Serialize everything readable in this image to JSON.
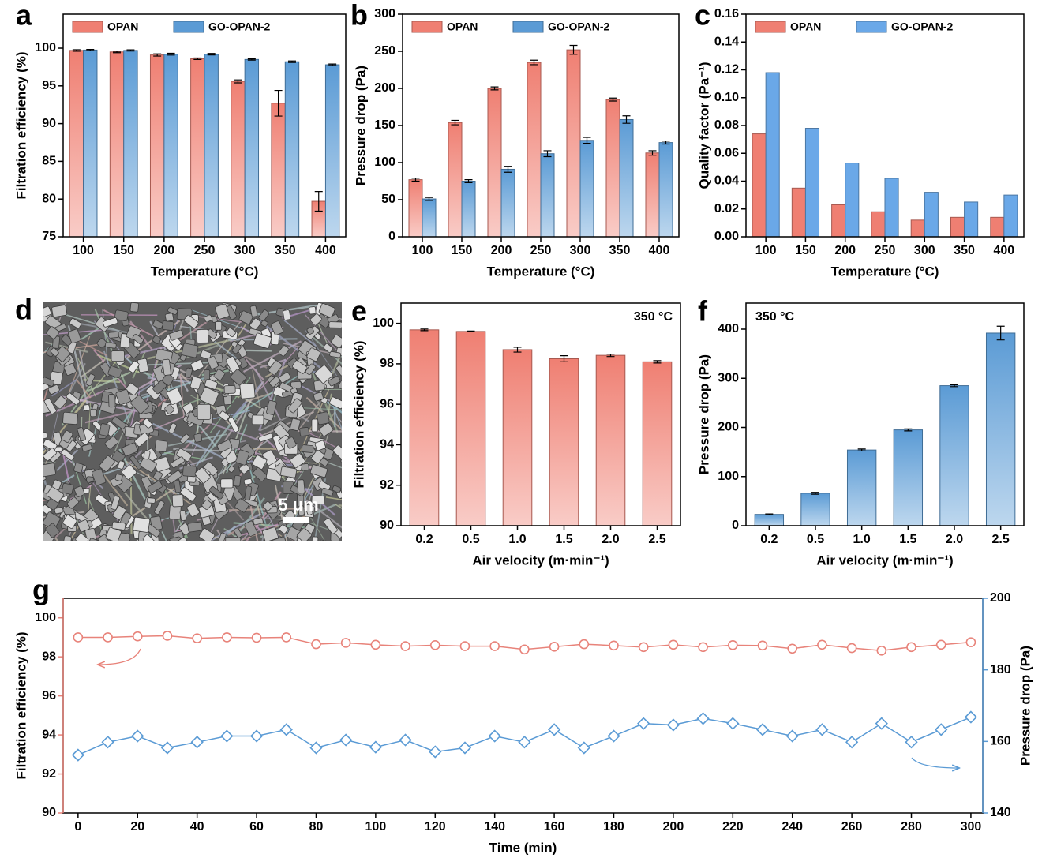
{
  "chart_data": [
    {
      "type": "bar",
      "label": "a",
      "ylabel": "Filtration efficiency (%)",
      "xlabel": "Temperature (°C)",
      "categories": [
        "100",
        "150",
        "200",
        "250",
        "300",
        "350",
        "400"
      ],
      "series": [
        {
          "name": "OPAN",
          "color": "#ef7f72",
          "values": [
            99.7,
            99.5,
            99.1,
            98.6,
            95.6,
            92.7,
            79.7
          ],
          "errors": [
            0.1,
            0.1,
            0.15,
            0.1,
            0.2,
            1.7,
            1.3
          ]
        },
        {
          "name": "GO-OPAN-2",
          "color": "#5b9bd5",
          "values": [
            99.75,
            99.7,
            99.2,
            99.2,
            98.5,
            98.2,
            97.8
          ],
          "errors": [
            0.08,
            0.08,
            0.12,
            0.1,
            0.08,
            0.1,
            0.1
          ]
        }
      ],
      "ylim": [
        75,
        104.5
      ],
      "yticks": [
        75,
        80,
        85,
        90,
        95,
        100
      ],
      "gradient": true
    },
    {
      "type": "bar",
      "label": "b",
      "ylabel": "Pressure drop (Pa)",
      "xlabel": "Temperature (°C)",
      "categories": [
        "100",
        "150",
        "200",
        "250",
        "300",
        "350",
        "400"
      ],
      "series": [
        {
          "name": "OPAN",
          "color": "#ef7f72",
          "values": [
            77,
            154,
            200,
            235,
            252,
            185,
            113
          ],
          "errors": [
            2,
            3,
            2,
            3,
            6,
            2,
            3
          ]
        },
        {
          "name": "GO-OPAN-2",
          "color": "#5b9bd5",
          "values": [
            51,
            75,
            91,
            112,
            130,
            158,
            127
          ],
          "errors": [
            2,
            2,
            4,
            4,
            4,
            5,
            2
          ]
        }
      ],
      "ylim": [
        0,
        300
      ],
      "yticks": [
        0,
        50,
        100,
        150,
        200,
        250,
        300
      ],
      "gradient": true
    },
    {
      "type": "bar",
      "label": "c",
      "ylabel": "Quality factor (Pa⁻¹)",
      "xlabel": "Temperature (°C)",
      "categories": [
        "100",
        "150",
        "200",
        "250",
        "300",
        "350",
        "400"
      ],
      "series": [
        {
          "name": "OPAN",
          "color": "#ef7f72",
          "values": [
            0.074,
            0.035,
            0.023,
            0.018,
            0.012,
            0.014,
            0.014
          ]
        },
        {
          "name": "GO-OPAN-2",
          "color": "#6aa8e8",
          "values": [
            0.118,
            0.078,
            0.053,
            0.042,
            0.032,
            0.025,
            0.03
          ]
        }
      ],
      "ylim": [
        0,
        0.16
      ],
      "yticks": [
        {
          "value": 0,
          "label": "0.00"
        },
        {
          "value": 0.02,
          "label": "0.02"
        },
        {
          "value": 0.04,
          "label": "0.04"
        },
        {
          "value": 0.06,
          "label": "0.06"
        },
        {
          "value": 0.08,
          "label": "0.08"
        },
        {
          "value": 0.1,
          "label": "0.10"
        },
        {
          "value": 0.12,
          "label": "0.12"
        },
        {
          "value": 0.14,
          "label": "0.14"
        },
        {
          "value": 0.16,
          "label": "0.16"
        }
      ],
      "gradient": false
    },
    {
      "type": "bar",
      "label": "e",
      "ylabel": "Filtration efficiency (%)",
      "xlabel": "Air velocity  (m·min⁻¹)",
      "annotation": "350 °C",
      "annotation_position": "upper right",
      "categories": [
        "0.2",
        "0.5",
        "1.0",
        "1.5",
        "2.0",
        "2.5"
      ],
      "series": [
        {
          "color": "#ef7f72",
          "values": [
            99.68,
            99.6,
            98.7,
            98.25,
            98.42,
            98.1
          ],
          "errors": [
            0.04,
            0.02,
            0.12,
            0.15,
            0.06,
            0.06
          ]
        }
      ],
      "ylim": [
        90,
        101
      ],
      "yticks": [
        90,
        92,
        94,
        96,
        98,
        100
      ],
      "gradient": true
    },
    {
      "type": "bar",
      "label": "f",
      "ylabel": "Pressure drop (Pa)",
      "xlabel": "Air velocity  (m·min⁻¹)",
      "annotation": "350 °C",
      "annotation_position": "upper left",
      "categories": [
        "0.2",
        "0.5",
        "1.0",
        "1.5",
        "2.0",
        "2.5"
      ],
      "series": [
        {
          "color": "#5b9bd5",
          "values": [
            23,
            66,
            154,
            195,
            285,
            392
          ],
          "errors": [
            1,
            2,
            2,
            2,
            2,
            14
          ]
        }
      ],
      "ylim": [
        0,
        453
      ],
      "yticks": [
        0,
        100,
        200,
        300,
        400
      ],
      "gradient": true
    },
    {
      "type": "line",
      "label": "g",
      "xlabel": "Time (min)",
      "ylabel": "Filtration efficiency (%)",
      "y2label": "Pressure drop (Pa)",
      "x": [
        0,
        10,
        20,
        30,
        40,
        50,
        60,
        70,
        80,
        90,
        100,
        110,
        120,
        130,
        140,
        150,
        160,
        170,
        180,
        190,
        200,
        210,
        220,
        230,
        240,
        250,
        260,
        270,
        280,
        290,
        300
      ],
      "series": [
        {
          "color": "#e8837a",
          "marker": "circle",
          "axis": "y",
          "values": [
            99.0,
            99.0,
            99.05,
            99.08,
            98.95,
            99.0,
            98.98,
            99.0,
            98.65,
            98.72,
            98.62,
            98.55,
            98.6,
            98.55,
            98.55,
            98.38,
            98.52,
            98.65,
            98.58,
            98.5,
            98.62,
            98.5,
            98.6,
            98.58,
            98.42,
            98.62,
            98.45,
            98.32,
            98.5,
            98.62,
            98.75
          ]
        },
        {
          "color": "#5b9bd5",
          "marker": "diamond",
          "axis": "y2",
          "values": [
            156.2,
            159.8,
            161.5,
            158.2,
            159.8,
            161.5,
            161.5,
            163.3,
            158.2,
            160.4,
            158.4,
            160.4,
            157.1,
            158.2,
            161.5,
            159.8,
            163.3,
            158.2,
            161.5,
            165,
            164.6,
            166.4,
            165,
            163.3,
            161.5,
            163.3,
            159.8,
            165,
            159.8,
            163.3,
            166.8
          ]
        }
      ],
      "xlim": [
        -5,
        304
      ],
      "xticks": [
        0,
        20,
        40,
        60,
        80,
        100,
        120,
        140,
        160,
        180,
        200,
        220,
        240,
        260,
        280,
        300
      ],
      "ylim": [
        90,
        101
      ],
      "yticks": [
        90,
        92,
        94,
        96,
        98,
        100
      ],
      "y2lim": [
        140,
        200
      ],
      "y2ticks": [
        140,
        160,
        180,
        200
      ]
    }
  ],
  "image": {
    "label": "d",
    "scale_bar": "5 μm"
  }
}
